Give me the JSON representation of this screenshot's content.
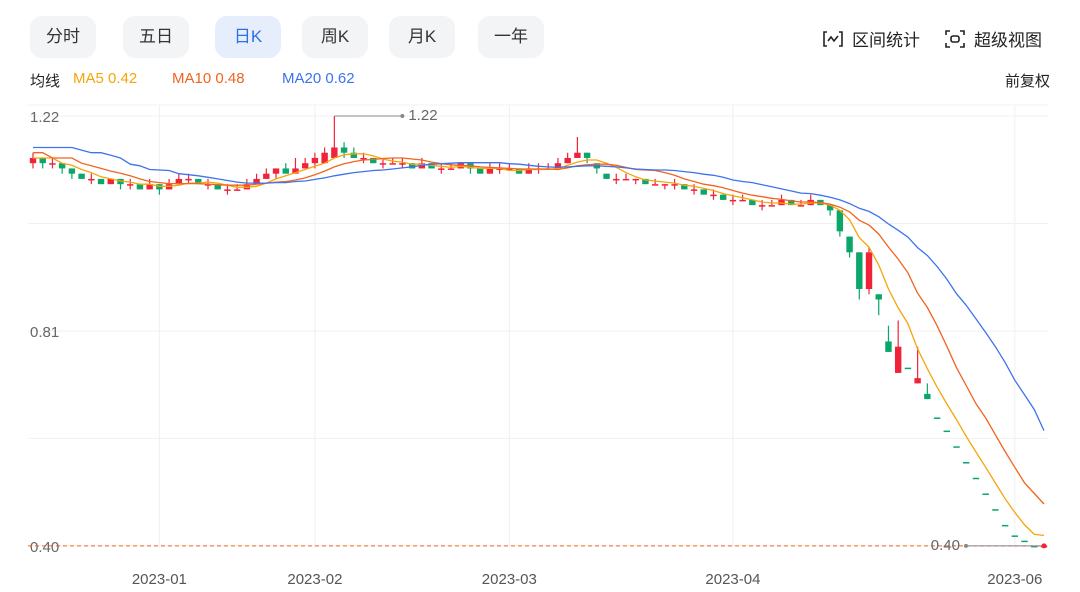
{
  "ui": {
    "tabs": [
      "分时",
      "五日",
      "日K",
      "周K",
      "月K",
      "一年"
    ],
    "active_tab": 2,
    "tools": [
      "区间统计",
      "超级视图"
    ],
    "ma_title": "均线",
    "adjust": "前复权"
  },
  "chart_data": {
    "type": "candlestick",
    "categories": [
      null,
      null,
      null,
      null,
      null,
      null,
      null,
      null,
      null,
      null,
      null,
      null,
      null,
      "2023-01",
      null,
      null,
      null,
      null,
      null,
      null,
      null,
      null,
      null,
      null,
      null,
      null,
      null,
      null,
      null,
      "2023-02",
      null,
      null,
      null,
      null,
      null,
      null,
      null,
      null,
      null,
      null,
      null,
      null,
      null,
      null,
      null,
      null,
      null,
      null,
      null,
      "2023-03",
      null,
      null,
      null,
      null,
      null,
      null,
      null,
      null,
      null,
      null,
      null,
      null,
      null,
      null,
      null,
      null,
      null,
      null,
      null,
      null,
      null,
      null,
      "2023-04",
      null,
      null,
      null,
      null,
      null,
      null,
      null,
      null,
      null,
      null,
      null,
      null,
      null,
      null,
      null,
      null,
      null,
      null,
      null,
      null,
      null,
      null,
      null,
      null,
      null,
      null,
      null,
      null,
      "2023-06",
      null,
      null,
      null
    ],
    "ohlc": [
      [
        1.13,
        1.14,
        1.12,
        1.15
      ],
      [
        1.14,
        1.13,
        1.12,
        1.14
      ],
      [
        1.13,
        1.13,
        1.12,
        1.14
      ],
      [
        1.13,
        1.12,
        1.11,
        1.13
      ],
      [
        1.12,
        1.11,
        1.1,
        1.12
      ],
      [
        1.11,
        1.1,
        1.1,
        1.11
      ],
      [
        1.1,
        1.1,
        1.09,
        1.11
      ],
      [
        1.1,
        1.09,
        1.09,
        1.1
      ],
      [
        1.09,
        1.1,
        1.09,
        1.1
      ],
      [
        1.1,
        1.09,
        1.08,
        1.1
      ],
      [
        1.09,
        1.09,
        1.08,
        1.1
      ],
      [
        1.09,
        1.08,
        1.08,
        1.09
      ],
      [
        1.08,
        1.09,
        1.08,
        1.1
      ],
      [
        1.09,
        1.08,
        1.07,
        1.09
      ],
      [
        1.08,
        1.09,
        1.08,
        1.1
      ],
      [
        1.09,
        1.1,
        1.09,
        1.11
      ],
      [
        1.1,
        1.1,
        1.09,
        1.11
      ],
      [
        1.1,
        1.09,
        1.09,
        1.1
      ],
      [
        1.09,
        1.09,
        1.08,
        1.1
      ],
      [
        1.09,
        1.08,
        1.08,
        1.09
      ],
      [
        1.08,
        1.08,
        1.07,
        1.09
      ],
      [
        1.08,
        1.08,
        1.08,
        1.09
      ],
      [
        1.08,
        1.09,
        1.08,
        1.1
      ],
      [
        1.09,
        1.1,
        1.09,
        1.11
      ],
      [
        1.1,
        1.11,
        1.1,
        1.12
      ],
      [
        1.11,
        1.12,
        1.1,
        1.12
      ],
      [
        1.12,
        1.11,
        1.11,
        1.13
      ],
      [
        1.11,
        1.12,
        1.11,
        1.14
      ],
      [
        1.12,
        1.13,
        1.12,
        1.14
      ],
      [
        1.13,
        1.14,
        1.12,
        1.15
      ],
      [
        1.13,
        1.15,
        1.13,
        1.16
      ],
      [
        1.14,
        1.16,
        1.14,
        1.22
      ],
      [
        1.16,
        1.15,
        1.14,
        1.17
      ],
      [
        1.15,
        1.14,
        1.14,
        1.16
      ],
      [
        1.14,
        1.14,
        1.13,
        1.15
      ],
      [
        1.14,
        1.13,
        1.13,
        1.14
      ],
      [
        1.13,
        1.13,
        1.12,
        1.14
      ],
      [
        1.13,
        1.13,
        1.13,
        1.14
      ],
      [
        1.13,
        1.13,
        1.12,
        1.14
      ],
      [
        1.13,
        1.12,
        1.12,
        1.13
      ],
      [
        1.12,
        1.13,
        1.12,
        1.14
      ],
      [
        1.13,
        1.12,
        1.12,
        1.13
      ],
      [
        1.12,
        1.12,
        1.11,
        1.13
      ],
      [
        1.12,
        1.12,
        1.12,
        1.13
      ],
      [
        1.12,
        1.13,
        1.12,
        1.13
      ],
      [
        1.13,
        1.12,
        1.11,
        1.13
      ],
      [
        1.12,
        1.11,
        1.11,
        1.12
      ],
      [
        1.11,
        1.12,
        1.11,
        1.13
      ],
      [
        1.12,
        1.12,
        1.11,
        1.13
      ],
      [
        1.12,
        1.12,
        1.12,
        1.13
      ],
      [
        1.12,
        1.11,
        1.11,
        1.12
      ],
      [
        1.11,
        1.12,
        1.11,
        1.13
      ],
      [
        1.12,
        1.12,
        1.11,
        1.13
      ],
      [
        1.12,
        1.12,
        1.12,
        1.13
      ],
      [
        1.12,
        1.13,
        1.12,
        1.14
      ],
      [
        1.13,
        1.14,
        1.13,
        1.15
      ],
      [
        1.14,
        1.15,
        1.14,
        1.18
      ],
      [
        1.15,
        1.14,
        1.13,
        1.15
      ],
      [
        1.13,
        1.12,
        1.11,
        1.13
      ],
      [
        1.11,
        1.1,
        1.1,
        1.11
      ],
      [
        1.1,
        1.1,
        1.09,
        1.11
      ],
      [
        1.1,
        1.1,
        1.1,
        1.11
      ],
      [
        1.1,
        1.1,
        1.09,
        1.1
      ],
      [
        1.1,
        1.09,
        1.09,
        1.1
      ],
      [
        1.09,
        1.09,
        1.09,
        1.1
      ],
      [
        1.09,
        1.09,
        1.08,
        1.09
      ],
      [
        1.09,
        1.09,
        1.08,
        1.1
      ],
      [
        1.09,
        1.08,
        1.08,
        1.09
      ],
      [
        1.08,
        1.08,
        1.07,
        1.09
      ],
      [
        1.08,
        1.07,
        1.07,
        1.08
      ],
      [
        1.07,
        1.07,
        1.06,
        1.08
      ],
      [
        1.07,
        1.06,
        1.06,
        1.07
      ],
      [
        1.06,
        1.06,
        1.05,
        1.07
      ],
      [
        1.06,
        1.06,
        1.06,
        1.07
      ],
      [
        1.06,
        1.05,
        1.05,
        1.06
      ],
      [
        1.05,
        1.05,
        1.04,
        1.06
      ],
      [
        1.05,
        1.05,
        1.05,
        1.06
      ],
      [
        1.05,
        1.06,
        1.05,
        1.07
      ],
      [
        1.06,
        1.05,
        1.05,
        1.06
      ],
      [
        1.05,
        1.05,
        1.05,
        1.06
      ],
      [
        1.05,
        1.06,
        1.05,
        1.07
      ],
      [
        1.06,
        1.05,
        1.05,
        1.06
      ],
      [
        1.05,
        1.04,
        1.03,
        1.05
      ],
      [
        1.04,
        1.0,
        0.99,
        1.04
      ],
      [
        0.99,
        0.96,
        0.95,
        0.99
      ],
      [
        0.96,
        0.89,
        0.87,
        0.96
      ],
      [
        0.89,
        0.96,
        0.88,
        0.97
      ],
      [
        0.88,
        0.87,
        0.84,
        0.88
      ],
      [
        0.79,
        0.77,
        0.77,
        0.82
      ],
      [
        0.73,
        0.78,
        0.73,
        0.83
      ],
      [
        0.74,
        0.74,
        0.74,
        0.74
      ],
      [
        0.71,
        0.72,
        0.71,
        0.78
      ],
      [
        0.69,
        0.68,
        0.68,
        0.71
      ],
      [
        0.645,
        0.645,
        0.645,
        0.645
      ],
      [
        0.62,
        0.62,
        0.62,
        0.62
      ],
      [
        0.59,
        0.59,
        0.59,
        0.59
      ],
      [
        0.56,
        0.56,
        0.56,
        0.56
      ],
      [
        0.53,
        0.53,
        0.53,
        0.53
      ],
      [
        0.5,
        0.5,
        0.5,
        0.5
      ],
      [
        0.47,
        0.47,
        0.47,
        0.47
      ],
      [
        0.44,
        0.44,
        0.44,
        0.44
      ],
      [
        0.42,
        0.42,
        0.42,
        0.42
      ],
      [
        0.41,
        0.41,
        0.41,
        0.41
      ],
      [
        0.4,
        0.4,
        0.4,
        0.4
      ],
      [
        0.4,
        0.4,
        0.4,
        0.4
      ]
    ],
    "up_color": "#f0233a",
    "down_color": "#0aa66a",
    "ma_series": [
      {
        "name": "MA5",
        "color": "#f6a50b",
        "values": [
          1.14,
          1.14,
          1.14,
          1.13,
          1.126,
          1.118,
          1.112,
          1.104,
          1.1,
          1.096,
          1.094,
          1.09,
          1.09,
          1.086,
          1.086,
          1.088,
          1.092,
          1.092,
          1.094,
          1.092,
          1.088,
          1.084,
          1.084,
          1.086,
          1.092,
          1.1,
          1.106,
          1.112,
          1.118,
          1.124,
          1.13,
          1.14,
          1.146,
          1.148,
          1.148,
          1.144,
          1.138,
          1.134,
          1.132,
          1.128,
          1.128,
          1.126,
          1.124,
          1.122,
          1.124,
          1.122,
          1.12,
          1.12,
          1.12,
          1.116,
          1.116,
          1.118,
          1.118,
          1.118,
          1.12,
          1.126,
          1.132,
          1.136,
          1.136,
          1.13,
          1.122,
          1.112,
          1.104,
          1.098,
          1.096,
          1.094,
          1.092,
          1.088,
          1.086,
          1.082,
          1.078,
          1.072,
          1.068,
          1.064,
          1.06,
          1.056,
          1.054,
          1.054,
          1.052,
          1.052,
          1.054,
          1.054,
          1.05,
          1.04,
          1.022,
          0.988,
          0.97,
          0.936,
          0.89,
          0.854,
          0.824,
          0.776,
          0.738,
          0.703,
          0.671,
          0.641,
          0.609,
          0.579,
          0.55,
          0.52,
          0.49,
          0.464,
          0.44,
          0.422,
          0.42
        ]
      },
      {
        "name": "MA10",
        "color": "#f2641f",
        "values": [
          1.15,
          1.15,
          1.14,
          1.14,
          1.14,
          1.13,
          1.125,
          1.12,
          1.115,
          1.111,
          1.106,
          1.1,
          1.095,
          1.093,
          1.091,
          1.091,
          1.091,
          1.091,
          1.09,
          1.089,
          1.088,
          1.088,
          1.088,
          1.09,
          1.092,
          1.094,
          1.095,
          1.098,
          1.102,
          1.108,
          1.115,
          1.123,
          1.129,
          1.133,
          1.136,
          1.137,
          1.139,
          1.14,
          1.14,
          1.138,
          1.136,
          1.132,
          1.129,
          1.127,
          1.126,
          1.125,
          1.123,
          1.122,
          1.121,
          1.12,
          1.119,
          1.119,
          1.119,
          1.119,
          1.118,
          1.121,
          1.125,
          1.127,
          1.128,
          1.128,
          1.126,
          1.122,
          1.118,
          1.117,
          1.116,
          1.112,
          1.107,
          1.1,
          1.095,
          1.09,
          1.087,
          1.083,
          1.078,
          1.073,
          1.069,
          1.066,
          1.063,
          1.061,
          1.058,
          1.056,
          1.056,
          1.055,
          1.052,
          1.046,
          1.037,
          1.021,
          1.012,
          0.995,
          0.97,
          0.947,
          0.921,
          0.882,
          0.855,
          0.82,
          0.781,
          0.74,
          0.706,
          0.671,
          0.644,
          0.612,
          0.58,
          0.55,
          0.52,
          0.5,
          0.48
        ]
      },
      {
        "name": "MA20",
        "color": "#3d73ee",
        "values": [
          1.16,
          1.16,
          1.16,
          1.16,
          1.16,
          1.155,
          1.15,
          1.15,
          1.145,
          1.14,
          1.128,
          1.125,
          1.118,
          1.117,
          1.116,
          1.11,
          1.108,
          1.106,
          1.103,
          1.1,
          1.097,
          1.094,
          1.092,
          1.092,
          1.092,
          1.093,
          1.093,
          1.095,
          1.096,
          1.099,
          1.102,
          1.106,
          1.109,
          1.112,
          1.114,
          1.116,
          1.117,
          1.119,
          1.121,
          1.123,
          1.126,
          1.128,
          1.129,
          1.13,
          1.131,
          1.131,
          1.131,
          1.131,
          1.131,
          1.129,
          1.128,
          1.126,
          1.124,
          1.123,
          1.122,
          1.123,
          1.124,
          1.125,
          1.125,
          1.124,
          1.123,
          1.121,
          1.119,
          1.118,
          1.117,
          1.117,
          1.116,
          1.114,
          1.112,
          1.109,
          1.107,
          1.103,
          1.098,
          1.095,
          1.093,
          1.089,
          1.085,
          1.081,
          1.077,
          1.073,
          1.072,
          1.069,
          1.065,
          1.06,
          1.053,
          1.044,
          1.038,
          1.028,
          1.014,
          1.002,
          0.989,
          0.969,
          0.954,
          0.933,
          0.909,
          0.881,
          0.859,
          0.833,
          0.807,
          0.78,
          0.75,
          0.716,
          0.688,
          0.66,
          0.62
        ]
      }
    ],
    "ylim": [
      0.396,
      1.241
    ],
    "yticks": [
      1.22,
      0.81,
      {
        "value": 0.4,
        "label": "0.40"
      }
    ],
    "grid": true,
    "max_annotation": 1.22,
    "min_annotation": {
      "value": 0.4,
      "label": "0.40"
    },
    "last_price": 0.4,
    "last_price_color": "#f2641f"
  }
}
